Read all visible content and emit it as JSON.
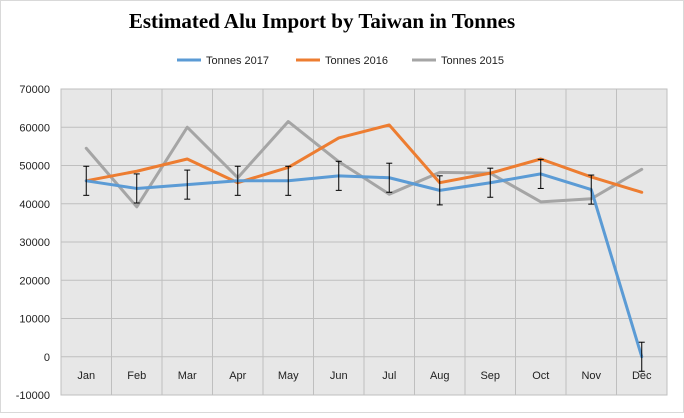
{
  "chart_data": {
    "type": "line",
    "title": "Estimated Alu Import by Taiwan in Tonnes",
    "xlabel": "",
    "ylabel": "",
    "categories": [
      "Jan",
      "Feb",
      "Mar",
      "Apr",
      "May",
      "Jun",
      "Jul",
      "Aug",
      "Sep",
      "Oct",
      "Nov",
      "Dec"
    ],
    "ylim": [
      -10000,
      70000
    ],
    "yticks": [
      -10000,
      0,
      10000,
      20000,
      30000,
      40000,
      50000,
      60000,
      70000
    ],
    "grid": true,
    "legend_position": "top",
    "series": [
      {
        "name": "Tonnes 2017",
        "color": "#5b9bd5",
        "values": [
          46000,
          44000,
          45000,
          46000,
          46000,
          47300,
          46800,
          43500,
          45500,
          47800,
          43700,
          0
        ],
        "error_bars": 3800
      },
      {
        "name": "Tonnes 2016",
        "color": "#ed7d31",
        "values": [
          46000,
          48500,
          51700,
          45500,
          49500,
          57200,
          60600,
          45500,
          48000,
          51700,
          47000,
          43000
        ]
      },
      {
        "name": "Tonnes 2015",
        "color": "#a5a5a5",
        "values": [
          54500,
          39200,
          60000,
          46800,
          61500,
          51000,
          42500,
          48200,
          48000,
          40500,
          41300,
          49000
        ]
      }
    ]
  }
}
